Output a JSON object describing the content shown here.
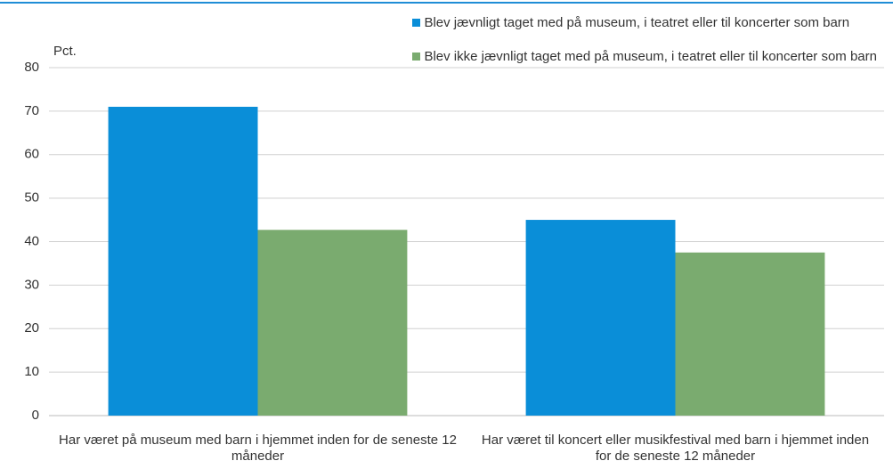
{
  "chart_data": {
    "type": "bar",
    "y_label": "Pct.",
    "categories": [
      "Har været på museum med barn i hjemmet inden for de seneste 12 måneder",
      "Har været til koncert eller musikfestival med barn i hjemmet inden for de seneste 12 måneder"
    ],
    "series": [
      {
        "name": "Blev jævnligt taget med på museum, i teatret eller til koncerter som barn",
        "color": "#0a8ed8",
        "values": [
          71,
          45
        ]
      },
      {
        "name": "Blev ikke jævnligt taget med på museum, i teatret eller til koncerter som barn",
        "color": "#7aab6f",
        "values": [
          42.7,
          37.5
        ]
      }
    ],
    "ylim": [
      0,
      80
    ],
    "yticks": [
      0,
      10,
      20,
      30,
      40,
      50,
      60,
      70,
      80
    ],
    "grid": true,
    "legend": "top-right"
  }
}
